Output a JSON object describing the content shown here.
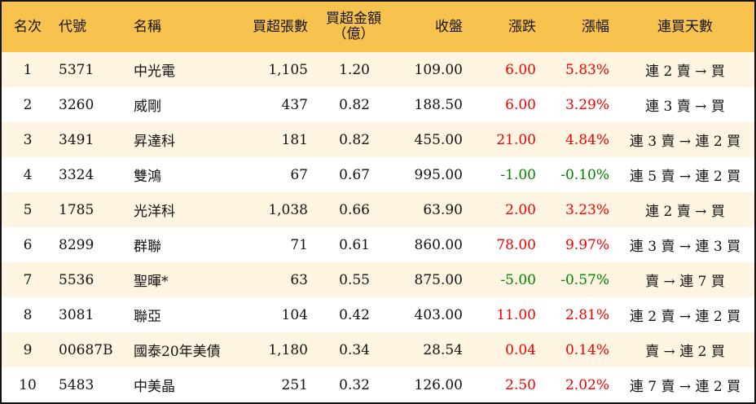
{
  "colors": {
    "header_bg": "#F8C24F",
    "alt_row_bg": "#FDF5E1",
    "up": "#F00000",
    "down": "#008000"
  },
  "headers": [
    "名次",
    "代號",
    "名稱",
    "買超張數",
    "買超金額\n（億）",
    "收盤",
    "漲跌",
    "漲幅",
    "連買天數"
  ],
  "rows": [
    {
      "rank": "1",
      "code": "5371",
      "name": "中光電",
      "shares": "1,105",
      "amount": "1.20",
      "close": "109.00",
      "change": "6.00",
      "pct": "5.83%",
      "streak": "連 2 賣 → 買",
      "dir": "up"
    },
    {
      "rank": "2",
      "code": "3260",
      "name": "威剛",
      "shares": "437",
      "amount": "0.82",
      "close": "188.50",
      "change": "6.00",
      "pct": "3.29%",
      "streak": "連 3 賣 → 買",
      "dir": "up"
    },
    {
      "rank": "3",
      "code": "3491",
      "name": "昇達科",
      "shares": "181",
      "amount": "0.82",
      "close": "455.00",
      "change": "21.00",
      "pct": "4.84%",
      "streak": "連 3 賣 → 連 2 買",
      "dir": "up"
    },
    {
      "rank": "4",
      "code": "3324",
      "name": "雙鴻",
      "shares": "67",
      "amount": "0.67",
      "close": "995.00",
      "change": "-1.00",
      "pct": "-0.10%",
      "streak": "連 5 賣 → 連 2 買",
      "dir": "down"
    },
    {
      "rank": "5",
      "code": "1785",
      "name": "光洋科",
      "shares": "1,038",
      "amount": "0.66",
      "close": "63.90",
      "change": "2.00",
      "pct": "3.23%",
      "streak": "連 2 賣 → 買",
      "dir": "up"
    },
    {
      "rank": "6",
      "code": "8299",
      "name": "群聯",
      "shares": "71",
      "amount": "0.61",
      "close": "860.00",
      "change": "78.00",
      "pct": "9.97%",
      "streak": "連 3 賣 → 連 3 買",
      "dir": "up"
    },
    {
      "rank": "7",
      "code": "5536",
      "name": "聖暉*",
      "shares": "63",
      "amount": "0.55",
      "close": "875.00",
      "change": "-5.00",
      "pct": "-0.57%",
      "streak": "賣 → 連 7 買",
      "dir": "down"
    },
    {
      "rank": "8",
      "code": "3081",
      "name": "聯亞",
      "shares": "104",
      "amount": "0.42",
      "close": "403.00",
      "change": "11.00",
      "pct": "2.81%",
      "streak": "連 2 賣 → 連 2 買",
      "dir": "up"
    },
    {
      "rank": "9",
      "code": "00687B",
      "name": "國泰20年美債",
      "shares": "1,180",
      "amount": "0.34",
      "close": "28.54",
      "change": "0.04",
      "pct": "0.14%",
      "streak": "賣 → 連 2 買",
      "dir": "up"
    },
    {
      "rank": "10",
      "code": "5483",
      "name": "中美晶",
      "shares": "251",
      "amount": "0.32",
      "close": "126.00",
      "change": "2.50",
      "pct": "2.02%",
      "streak": "連 7 賣 → 連 2 買",
      "dir": "up"
    }
  ]
}
